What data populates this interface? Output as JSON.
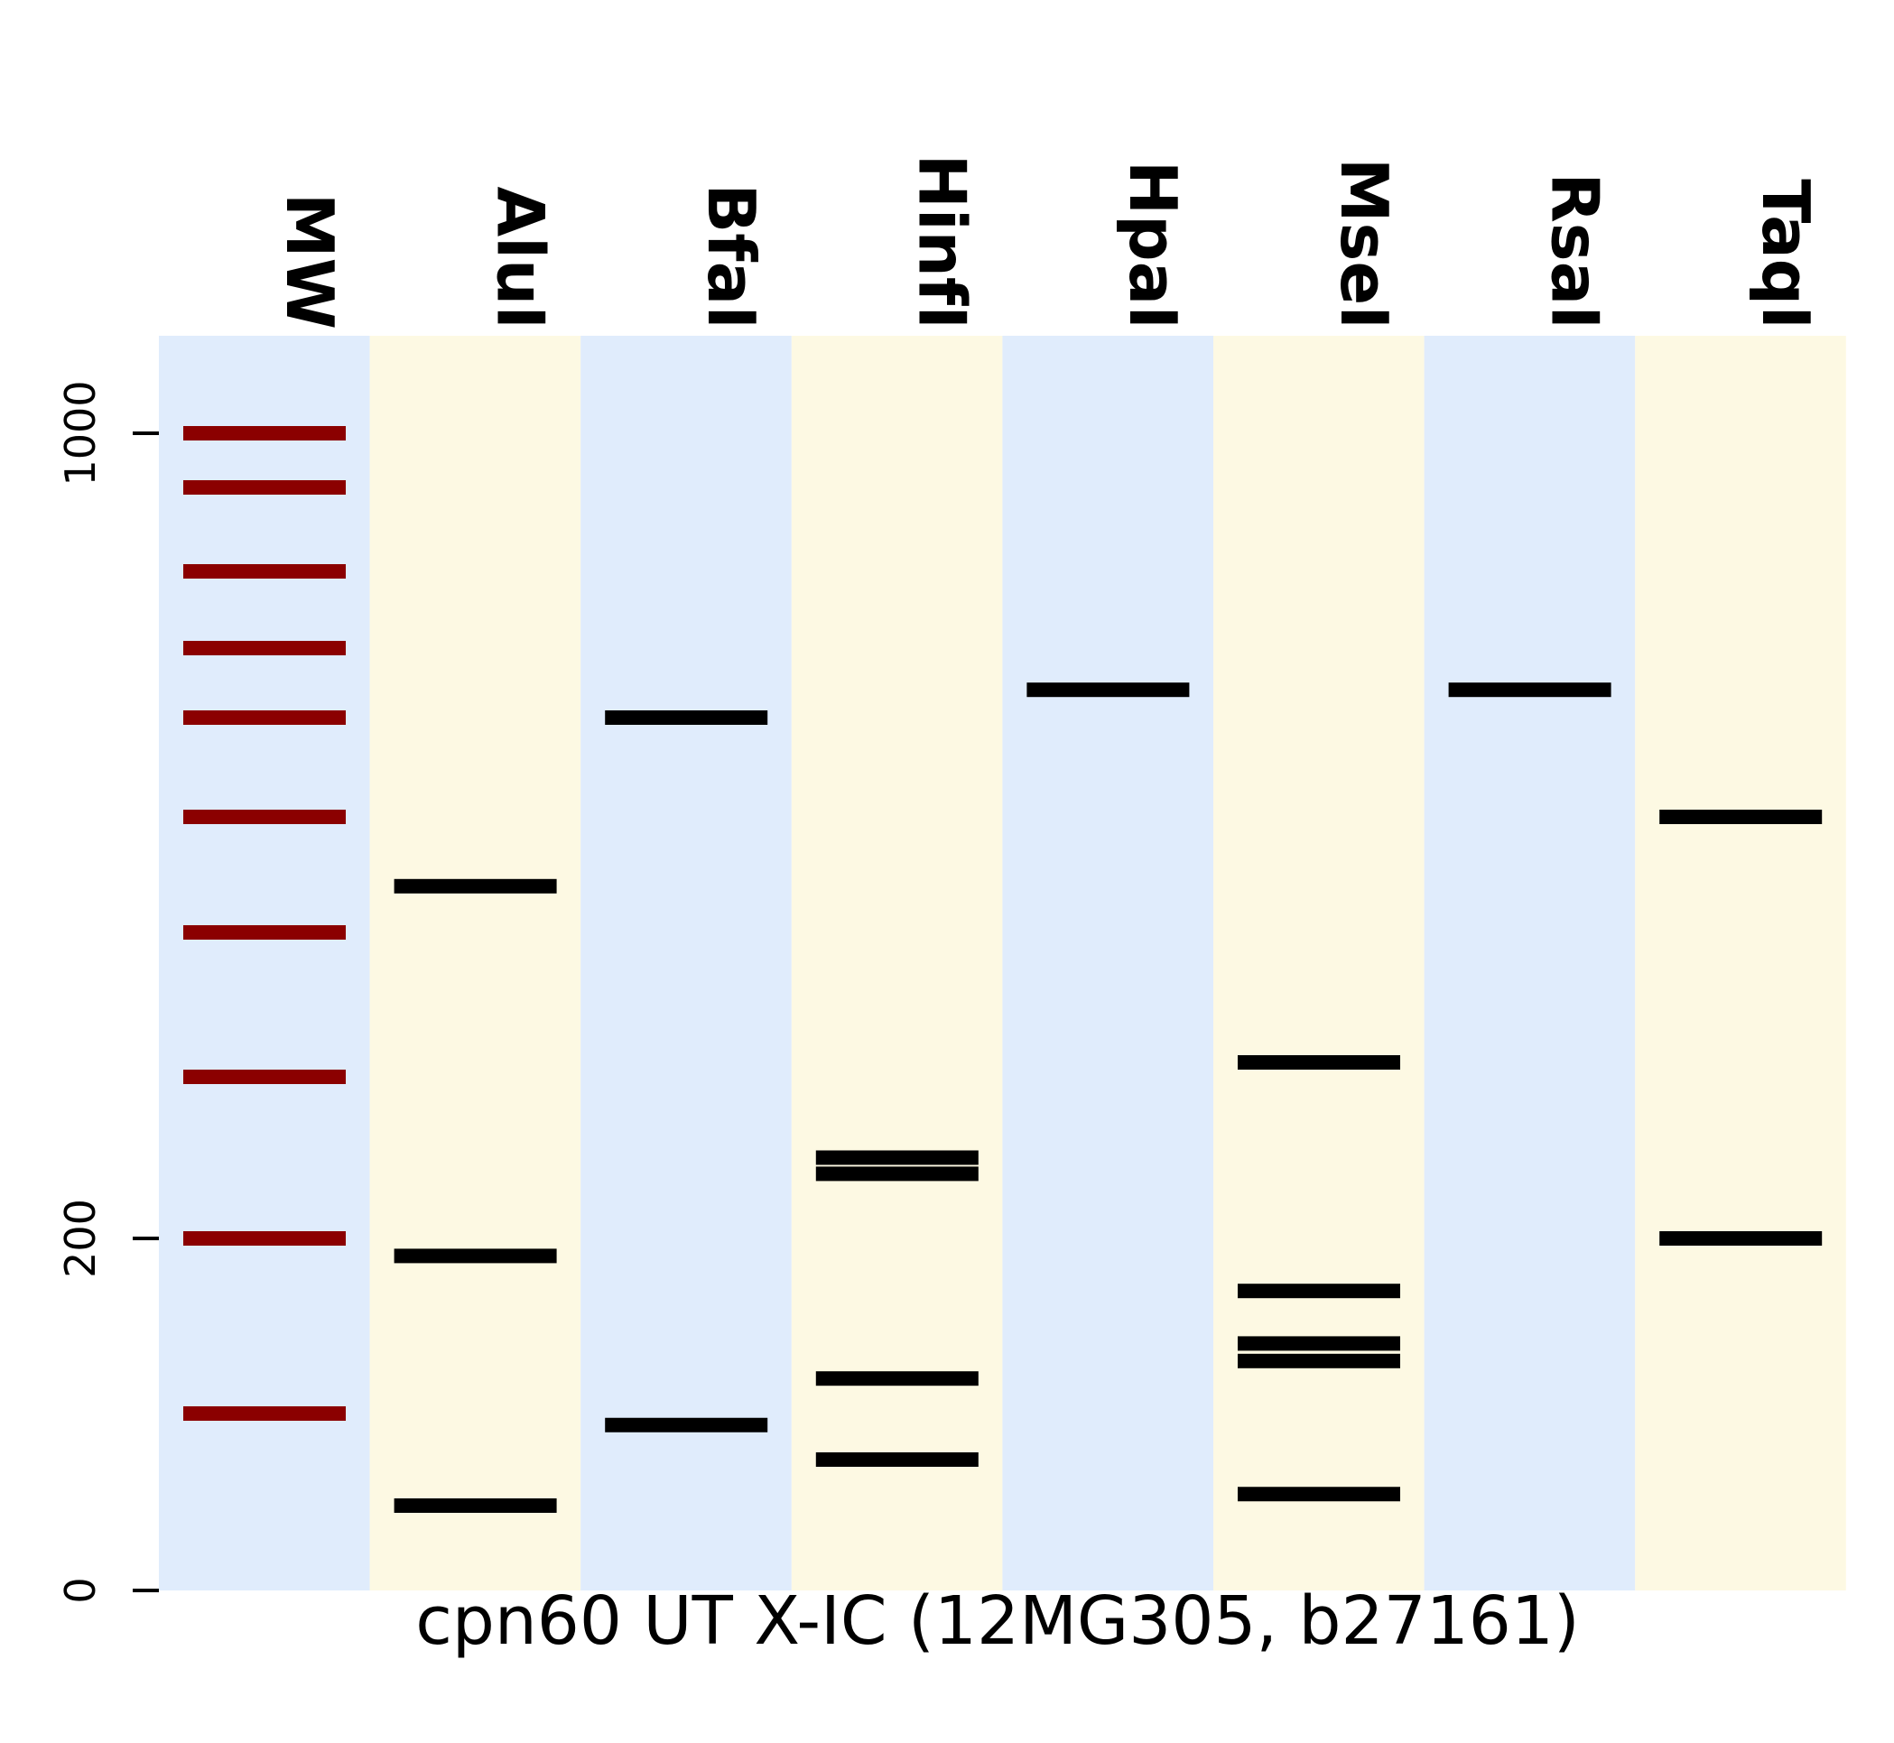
{
  "chart_data": {
    "type": "gel",
    "title": "",
    "xlabel": "cpn60 UT X-IC (12MG305, b27161)",
    "ylabel": "",
    "y_ticks": [
      "0",
      "200",
      "1000"
    ],
    "y_scale": "gel migration (log-like spacing of ladder bands)",
    "grid": false,
    "legend": "none",
    "lane_colors": [
      "#e0ecfc",
      "#fdf9e3"
    ],
    "ladder_color": "#8b0000",
    "band_color": "#000000",
    "lanes": [
      {
        "label": "MW",
        "ladder": true,
        "bands": [
          1000,
          900,
          800,
          700,
          600,
          500,
          400,
          300,
          200,
          100
        ]
      },
      {
        "label": "AluI",
        "bands": [
          440,
          190,
          20
        ]
      },
      {
        "label": "BfaI",
        "bands": [
          600,
          90
        ]
      },
      {
        "label": "HinfI",
        "bands": [
          250,
          240,
          120,
          60
        ]
      },
      {
        "label": "HpaI",
        "bands": [
          640
        ]
      },
      {
        "label": "MseI",
        "bands": [
          310,
          170,
          140,
          130,
          30
        ]
      },
      {
        "label": "RsaI",
        "bands": [
          640
        ]
      },
      {
        "label": "TaqI",
        "bands": [
          500,
          200
        ]
      }
    ]
  }
}
